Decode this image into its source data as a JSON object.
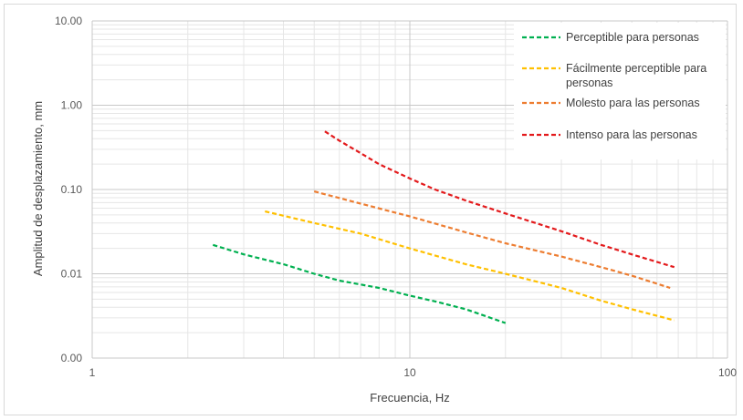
{
  "chart_data": {
    "type": "line",
    "xlabel": "Frecuencia, Hz",
    "ylabel": "Amplitud de desplazamiento, mm",
    "x_scale": "log",
    "y_scale": "log",
    "xlim": [
      1,
      100
    ],
    "ylim": [
      0.001,
      10
    ],
    "x_ticks": [
      1,
      10,
      100
    ],
    "x_tick_labels": [
      "1",
      "10",
      "100"
    ],
    "y_ticks": [
      0.001,
      0.01,
      0.1,
      1,
      10
    ],
    "y_tick_labels": [
      "0.00",
      "0.01",
      "0.10",
      "1.00",
      "10.00"
    ],
    "grid": true,
    "legend_position": "top-right",
    "series": [
      {
        "name": "Perceptible para personas",
        "color": "#00b050",
        "style": "dashed",
        "x": [
          2.4,
          3,
          4,
          5,
          6,
          8,
          10,
          12,
          15,
          20
        ],
        "y": [
          0.022,
          0.017,
          0.013,
          0.01,
          0.0083,
          0.0068,
          0.0055,
          0.0047,
          0.0038,
          0.0026
        ]
      },
      {
        "name": "Fácilmente perceptible para personas",
        "color": "#ffc000",
        "style": "dashed",
        "x": [
          3.5,
          5,
          7,
          10,
          15,
          20,
          30,
          40,
          50,
          68
        ],
        "y": [
          0.055,
          0.04,
          0.03,
          0.02,
          0.013,
          0.01,
          0.0068,
          0.0048,
          0.0038,
          0.0028
        ]
      },
      {
        "name": "Molesto para las personas",
        "color": "#ed7d31",
        "style": "dashed",
        "x": [
          5,
          7,
          10,
          15,
          20,
          30,
          40,
          50,
          66
        ],
        "y": [
          0.095,
          0.068,
          0.048,
          0.031,
          0.023,
          0.016,
          0.012,
          0.0095,
          0.0068
        ]
      },
      {
        "name": "Intenso para las personas",
        "color": "#e31a1c",
        "style": "dashed",
        "x": [
          5.4,
          6,
          7,
          8,
          10,
          12,
          15,
          20,
          30,
          40,
          50,
          68
        ],
        "y": [
          0.49,
          0.38,
          0.27,
          0.2,
          0.135,
          0.1,
          0.074,
          0.052,
          0.032,
          0.022,
          0.017,
          0.012
        ]
      }
    ]
  }
}
